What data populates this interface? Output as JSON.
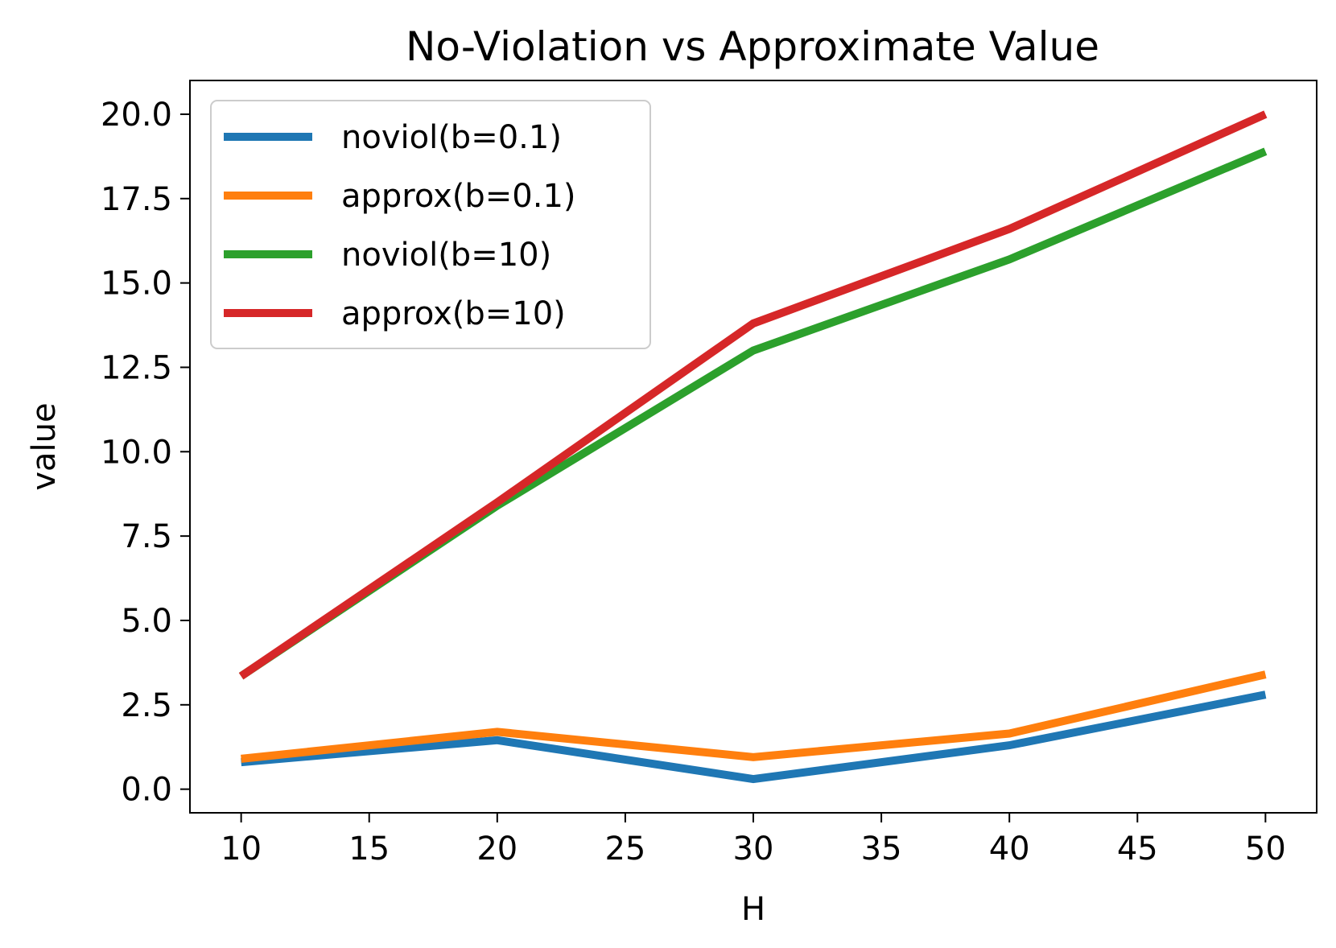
{
  "chart_data": {
    "type": "line",
    "title": "No-Violation vs Approximate Value",
    "xlabel": "H",
    "ylabel": "value",
    "x": [
      10,
      20,
      30,
      40,
      50
    ],
    "xlim": [
      8,
      52
    ],
    "ylim": [
      -0.7,
      21.0
    ],
    "xticks": [
      10,
      15,
      20,
      25,
      30,
      35,
      40,
      45,
      50
    ],
    "yticks": [
      0.0,
      2.5,
      5.0,
      7.5,
      10.0,
      12.5,
      15.0,
      17.5,
      20.0
    ],
    "xtick_labels": [
      "10",
      "15",
      "20",
      "25",
      "30",
      "35",
      "40",
      "45",
      "50"
    ],
    "ytick_labels": [
      "0.0",
      "2.5",
      "5.0",
      "7.5",
      "10.0",
      "12.5",
      "15.0",
      "17.5",
      "20.0"
    ],
    "grid": false,
    "legend_position": "top-left",
    "series": [
      {
        "name": "noviol(b=0.1)",
        "color": "#1f77b4",
        "values": [
          0.8,
          1.45,
          0.3,
          1.3,
          2.8
        ]
      },
      {
        "name": "approx(b=0.1)",
        "color": "#ff7f0e",
        "values": [
          0.9,
          1.7,
          0.95,
          1.65,
          3.4
        ]
      },
      {
        "name": "noviol(b=10)",
        "color": "#2ca02c",
        "values": [
          3.35,
          8.4,
          13.0,
          15.7,
          18.9
        ]
      },
      {
        "name": "approx(b=10)",
        "color": "#d62728",
        "values": [
          3.35,
          8.5,
          13.8,
          16.6,
          20.0
        ]
      }
    ]
  }
}
